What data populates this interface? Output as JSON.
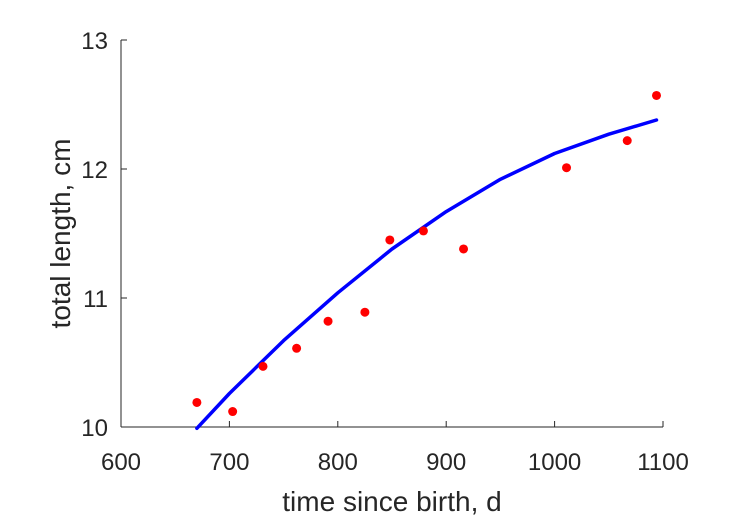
{
  "chart_data": {
    "type": "scatter",
    "title": "",
    "xlabel": "time since birth, d",
    "ylabel": "total length, cm",
    "xlim": [
      600,
      1100
    ],
    "ylim": [
      10,
      13
    ],
    "x_ticks": [
      600,
      700,
      800,
      900,
      1000,
      1100
    ],
    "x_tick_labels": [
      "600",
      "700",
      "800",
      "900",
      "1000",
      "1100"
    ],
    "y_ticks": [
      10,
      11,
      12,
      13
    ],
    "y_tick_labels": [
      "10",
      "11",
      "12",
      "13"
    ],
    "grid": false,
    "legend": "none",
    "series": [
      {
        "kind": "points",
        "color": "#ff0000",
        "x": [
          670,
          703,
          731,
          762,
          791,
          825,
          848,
          879,
          916,
          1011,
          1067,
          1094
        ],
        "y": [
          10.19,
          10.12,
          10.47,
          10.61,
          10.82,
          10.89,
          11.45,
          11.52,
          11.38,
          12.01,
          12.22,
          12.57
        ]
      },
      {
        "kind": "line",
        "color": "#0000ff",
        "x": [
          670,
          700,
          750,
          800,
          850,
          900,
          950,
          1000,
          1050,
          1094
        ],
        "y": [
          9.99,
          10.26,
          10.67,
          11.04,
          11.38,
          11.67,
          11.92,
          12.12,
          12.27,
          12.38
        ]
      }
    ]
  }
}
